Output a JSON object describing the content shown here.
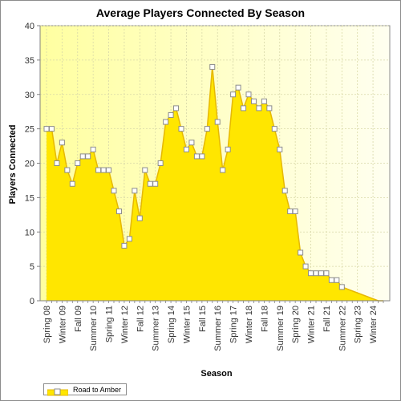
{
  "chart_data": {
    "type": "area",
    "title": "Average Players Connected By Season",
    "xlabel": "Season",
    "ylabel": "Players Connected",
    "ylim": [
      0,
      40
    ],
    "yticks": [
      0,
      5,
      10,
      15,
      20,
      25,
      30,
      35,
      40
    ],
    "grid": true,
    "legend_position": "bottom-left",
    "colors": {
      "fill": "#ffe600",
      "line": "#e6b800",
      "marker_fill": "#ffffff",
      "marker_stroke": "#8c8c8c",
      "plot_bg_start": "#ffffa0",
      "plot_bg_end": "#fffff0"
    },
    "tick_labels": [
      "Spring 08",
      "Winter 09",
      "Fall 09",
      "Summer 10",
      "Spring 11",
      "Winter 12",
      "Fall 12",
      "Summer 13",
      "Spring 14",
      "Winter 15",
      "Fall 15",
      "Summer 16",
      "Spring 17",
      "Winter 18",
      "Fall 18",
      "Summer 19",
      "Spring 20",
      "Winter 21",
      "Fall 21",
      "Summer 22",
      "Spring 23",
      "Winter 24"
    ],
    "series": [
      {
        "name": "Road to Amber",
        "values": [
          25,
          25,
          20,
          23,
          19,
          17,
          20,
          21,
          21,
          22,
          19,
          19,
          19,
          16,
          13,
          8,
          9,
          16,
          12,
          19,
          17,
          17,
          20,
          26,
          27,
          28,
          25,
          22,
          23,
          21,
          21,
          25,
          34,
          26,
          19,
          22,
          30,
          31,
          28,
          30,
          29,
          28,
          29,
          28,
          25,
          22,
          16,
          13,
          13,
          7,
          5,
          4,
          4,
          4,
          4,
          3,
          3,
          2,
          null,
          null,
          null,
          null,
          null,
          null,
          0,
          0
        ]
      }
    ]
  }
}
